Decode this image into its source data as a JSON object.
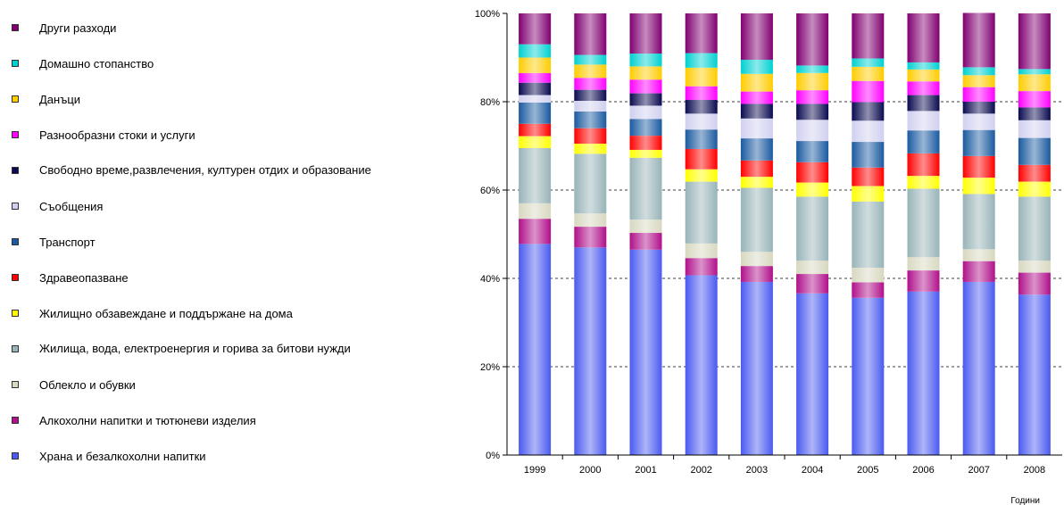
{
  "chart_data": {
    "type": "bar",
    "stacked": true,
    "percent": true,
    "xlabel": "Години",
    "ylabel": "",
    "ylim": [
      0,
      100
    ],
    "yticks": [
      "0%",
      "20%",
      "40%",
      "60%",
      "80%",
      "100%"
    ],
    "grid": "horizontal dashed at 20%, 40%, 60%, 80%",
    "legend_position": "left",
    "categories": [
      "1999",
      "2000",
      "2001",
      "2002",
      "2003",
      "2004",
      "2005",
      "2006",
      "2007",
      "2008"
    ],
    "series": [
      {
        "name": "Храна и безалкохолни напитки",
        "color": "#4a5af0",
        "values": [
          47.8,
          47.0,
          46.5,
          40.7,
          39.2,
          36.6,
          35.6,
          37.0,
          39.2,
          36.3
        ]
      },
      {
        "name": "Алкохолни напитки и тютюневи изделия",
        "color": "#b0108a",
        "values": [
          5.7,
          4.7,
          3.8,
          3.9,
          3.6,
          4.4,
          3.5,
          4.8,
          4.7,
          5.0
        ]
      },
      {
        "name": "Облекло и обувки",
        "color": "#d8d8c0",
        "values": [
          3.5,
          3.0,
          3.0,
          3.3,
          3.2,
          3.0,
          3.3,
          3.0,
          2.7,
          2.7
        ]
      },
      {
        "name": "Жилища, вода, електроенергия и горива за битови нужди",
        "color": "#98b4b8",
        "values": [
          12.5,
          13.5,
          14.0,
          14.0,
          14.5,
          14.5,
          15.0,
          15.5,
          12.5,
          14.5
        ]
      },
      {
        "name": "Жилищно обзавеждане и поддържане на дома",
        "color": "#ffff00",
        "values": [
          2.7,
          2.3,
          1.8,
          2.8,
          2.5,
          3.2,
          3.5,
          2.9,
          3.7,
          3.4
        ]
      },
      {
        "name": "Здравеопазване",
        "color": "#ff0000",
        "values": [
          2.8,
          3.5,
          3.2,
          4.6,
          3.7,
          4.6,
          4.2,
          5.1,
          4.9,
          3.8
        ]
      },
      {
        "name": "Транспорт",
        "color": "#1a5aa0",
        "values": [
          4.8,
          3.8,
          3.8,
          4.4,
          5.0,
          4.8,
          5.8,
          5.2,
          5.9,
          6.1
        ]
      },
      {
        "name": "Съобщения",
        "color": "#d0d0f0",
        "values": [
          1.7,
          2.4,
          3.0,
          3.6,
          4.5,
          4.8,
          4.8,
          4.4,
          3.7,
          4.0
        ]
      },
      {
        "name": "Свободно време,развлечения, културен отдих и образование",
        "color": "#0a0a50",
        "values": [
          2.8,
          2.5,
          2.8,
          3.1,
          3.3,
          3.6,
          4.2,
          3.6,
          2.7,
          2.9
        ]
      },
      {
        "name": "Разнообразни стоки и услуги",
        "color": "#ff00ff",
        "values": [
          2.2,
          2.7,
          3.1,
          3.1,
          2.8,
          3.1,
          4.8,
          3.1,
          3.3,
          3.7
        ]
      },
      {
        "name": "Данъци",
        "color": "#ffcc00",
        "values": [
          3.5,
          3.0,
          3.0,
          4.2,
          4.0,
          3.9,
          3.2,
          2.7,
          2.7,
          3.8
        ]
      },
      {
        "name": "Домашно стопанство",
        "color": "#00d0d0",
        "values": [
          3.0,
          2.2,
          2.9,
          3.3,
          3.2,
          1.7,
          1.9,
          1.6,
          1.8,
          1.2
        ]
      },
      {
        "name": "Други разходи",
        "color": "#800070",
        "values": [
          7.0,
          9.4,
          9.1,
          9.0,
          10.5,
          11.8,
          10.2,
          11.1,
          12.3,
          12.6
        ]
      }
    ]
  }
}
